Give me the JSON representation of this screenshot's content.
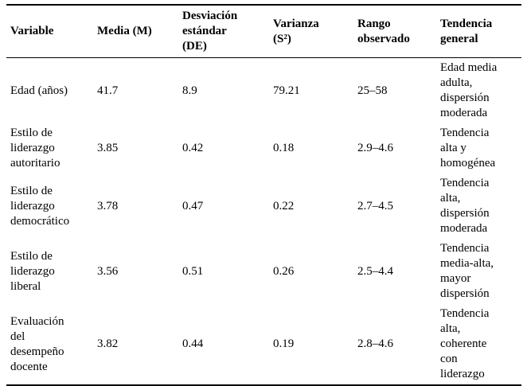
{
  "colors": {
    "text": "#000000",
    "border": "#000000",
    "background": "#ffffff"
  },
  "table": {
    "columns": [
      {
        "label": "Variable"
      },
      {
        "label": "Media (M)"
      },
      {
        "label": "Desviación\nestándar\n(DE)"
      },
      {
        "label": "Varianza\n(S²)"
      },
      {
        "label": "Rango\nobservado"
      },
      {
        "label": "Tendencia\ngeneral"
      }
    ],
    "rows": [
      {
        "variable": "Edad (años)",
        "media": "41.7",
        "desviacion": "8.9",
        "varianza": "79.21",
        "rango": "25–58",
        "tendencia": "Edad media\nadulta,\ndispersión\nmoderada"
      },
      {
        "variable": "Estilo de\nliderazgo\nautoritario",
        "media": "3.85",
        "desviacion": "0.42",
        "varianza": "0.18",
        "rango": "2.9–4.6",
        "tendencia": "Tendencia\nalta y\nhomogénea"
      },
      {
        "variable": "Estilo de\nliderazgo\ndemocrático",
        "media": "3.78",
        "desviacion": "0.47",
        "varianza": "0.22",
        "rango": "2.7–4.5",
        "tendencia": "Tendencia\nalta,\ndispersión\nmoderada"
      },
      {
        "variable": "Estilo de\nliderazgo\nliberal",
        "media": "3.56",
        "desviacion": "0.51",
        "varianza": "0.26",
        "rango": "2.5–4.4",
        "tendencia": "Tendencia\nmedia-alta,\nmayor\ndispersión"
      },
      {
        "variable": "Evaluación\ndel\ndesempeño\ndocente",
        "media": "3.82",
        "desviacion": "0.44",
        "varianza": "0.19",
        "rango": "2.8–4.6",
        "tendencia": "Tendencia\nalta,\ncoherente\ncon\nliderazgo"
      }
    ]
  }
}
